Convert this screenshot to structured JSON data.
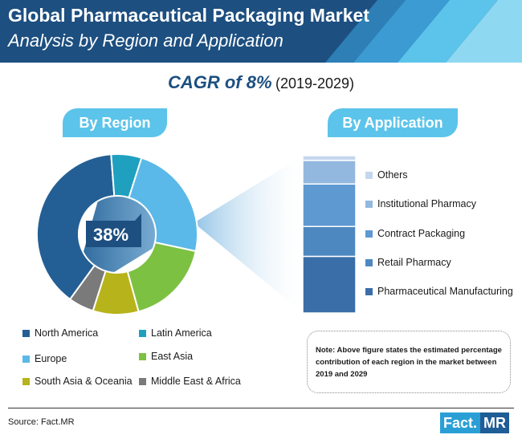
{
  "header": {
    "title": "Global Pharmaceutical Packaging Market",
    "subtitle": "Analysis by Region and Application"
  },
  "cagr": {
    "main": "CAGR of 8%",
    "years": "(2019-2029)"
  },
  "tabs": {
    "region": "By Region",
    "application": "By Application"
  },
  "callout": "38%",
  "note": "Note: Above figure states the estimated percentage contribution of each region in the market between 2019 and 2029",
  "footer": {
    "source": "Source: Fact.MR",
    "logo_left": "Fact.",
    "logo_right": "MR"
  },
  "colors": {
    "header_dark": "#1d4f80",
    "header_light": "#5cc4ea",
    "accent": "#1d4f80"
  },
  "chart_data": [
    {
      "type": "pie",
      "title": "By Region",
      "donut": true,
      "categories": [
        "North America",
        "Latin America",
        "Europe",
        "East Asia",
        "South Asia & Oceania",
        "Middle East & Africa"
      ],
      "values": [
        38,
        6,
        23,
        17,
        9,
        5
      ],
      "colors": [
        "#235f94",
        "#1fa0bf",
        "#5ab9e8",
        "#7dc142",
        "#b7b31a",
        "#7a7a7a"
      ],
      "data_labels": [
        "38%",
        "",
        "",
        "",
        "",
        ""
      ]
    },
    {
      "type": "bar",
      "title": "By Application",
      "stacked": true,
      "categories": [
        "Pharmaceutical Manufacturing",
        "Retail Pharmacy",
        "Contract Packaging",
        "Institutional Pharmacy",
        "Others"
      ],
      "values": [
        36,
        19,
        27,
        15,
        3
      ],
      "colors": [
        "#3a6ea8",
        "#4e88c1",
        "#5e99d2",
        "#93b8e0",
        "#c5d7ee"
      ]
    }
  ]
}
